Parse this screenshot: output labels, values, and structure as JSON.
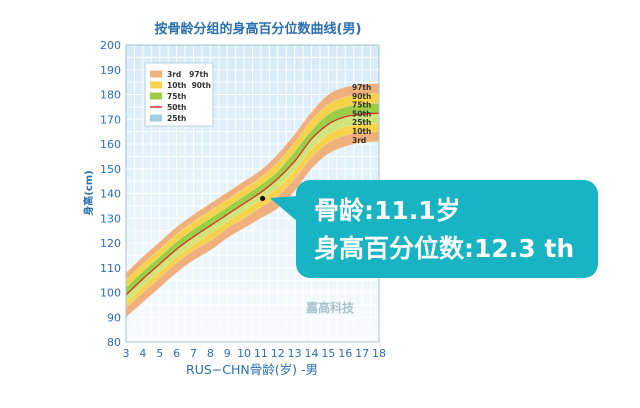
{
  "chart_data": {
    "type": "area",
    "title": "按骨龄分组的身高百分位数曲线(男)",
    "xlabel": "RUS−CHN骨龄(岁) -男",
    "ylabel": "身高(cm)",
    "xlim": [
      3,
      18
    ],
    "ylim": [
      80,
      200
    ],
    "xticks": [
      3,
      4,
      5,
      6,
      7,
      8,
      9,
      10,
      11,
      12,
      13,
      14,
      15,
      16,
      17,
      18
    ],
    "yticks": [
      80,
      90,
      100,
      110,
      120,
      130,
      140,
      150,
      160,
      170,
      180,
      190,
      200
    ],
    "grid": true,
    "x": [
      3,
      4,
      5,
      6,
      7,
      8,
      9,
      10,
      11,
      12,
      13,
      14,
      15,
      16,
      17,
      18
    ],
    "series": [
      {
        "name": "3rd",
        "values": [
          90,
          96,
          102,
          108,
          113,
          117,
          122,
          126,
          130,
          134,
          141,
          150,
          156,
          159,
          160.5,
          161
        ]
      },
      {
        "name": "10th",
        "values": [
          94,
          100,
          106,
          112,
          117,
          121,
          126,
          130,
          134.5,
          139,
          146,
          154.5,
          160.5,
          163.5,
          164.5,
          165
        ]
      },
      {
        "name": "25th",
        "values": [
          96,
          102.5,
          108.5,
          114.5,
          119.5,
          124,
          128.5,
          133,
          137.5,
          142.5,
          149.5,
          158,
          164,
          167,
          168,
          168.5
        ]
      },
      {
        "name": "50th",
        "values": [
          99,
          105.5,
          111.5,
          117.5,
          122.5,
          127,
          131.5,
          136,
          140.5,
          146,
          153,
          162,
          168,
          171,
          172,
          172.5
        ]
      },
      {
        "name": "75th",
        "values": [
          102,
          108.5,
          114.5,
          120.5,
          125.5,
          130,
          134.5,
          139,
          143.5,
          149,
          157,
          165.5,
          172,
          175,
          176,
          176.5
        ]
      },
      {
        "name": "90th",
        "values": [
          105,
          111.5,
          117.5,
          123.5,
          128.5,
          133,
          137.5,
          142,
          146.5,
          152.5,
          160.5,
          169.5,
          176,
          179,
          180,
          180.5
        ]
      },
      {
        "name": "97th",
        "values": [
          108,
          114.5,
          120.5,
          126.5,
          131.5,
          136,
          140.5,
          145,
          149.5,
          156,
          164,
          173,
          180,
          183,
          184,
          184.5
        ]
      }
    ],
    "marker": {
      "x": 11.1,
      "y": 138
    },
    "legend": {
      "placement": "top-left",
      "entries": [
        {
          "label": "3rd   97th",
          "color": "#f0b07e"
        },
        {
          "label": "10th  90th",
          "color": "#f6d34a"
        },
        {
          "label": "75th",
          "color": "#9bcd45"
        },
        {
          "label": "50th",
          "color": "#d93030"
        },
        {
          "label": "25th",
          "color": "#9fcfdc"
        }
      ]
    },
    "end_labels": [
      "97th",
      "90th",
      "75th",
      "50th",
      "25th",
      "10th",
      "3rd"
    ],
    "watermark": "嘉高科技",
    "colors": {
      "band_outer": "#f0b07e",
      "band_mid": "#f6d34a",
      "band_upper_inner": "#9bcd45",
      "band_lower_inner": "#cfe47a",
      "median_line": "#d93030",
      "axis_text": "#2a6fb0",
      "plot_bg_top": "#d6ebf8",
      "plot_bg_bottom": "#f7fbfe"
    }
  },
  "callout": {
    "bone_age_label": "骨龄:",
    "bone_age_value": "11.1岁",
    "percentile_label": "身高百分位数:",
    "percentile_value": "12.3 th"
  }
}
